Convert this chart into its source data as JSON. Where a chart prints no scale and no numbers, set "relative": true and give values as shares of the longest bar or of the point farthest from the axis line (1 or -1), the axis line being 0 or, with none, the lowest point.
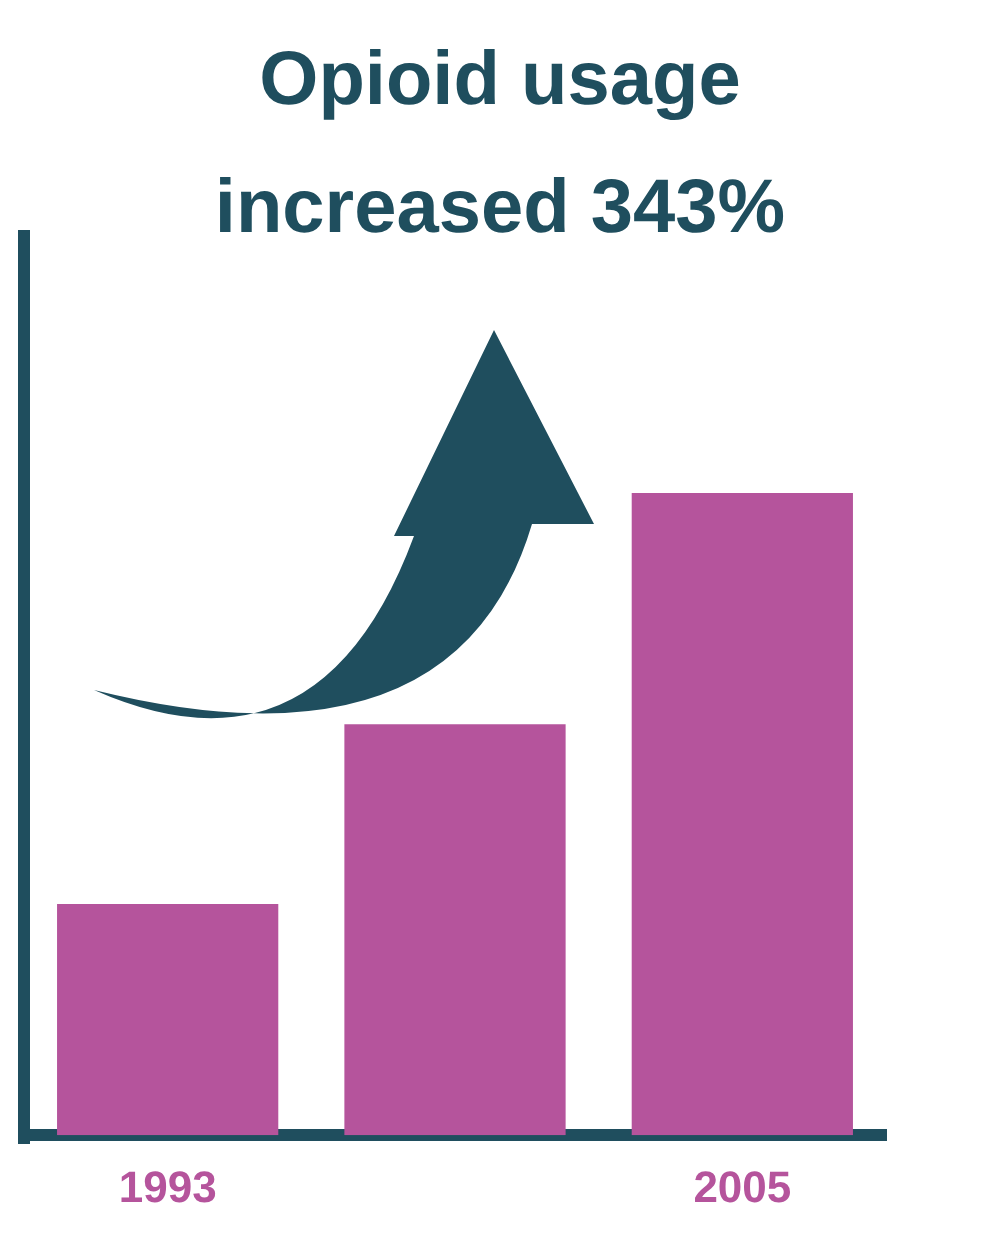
{
  "chart_data": {
    "type": "bar",
    "title": "Opioid usage increased 343%",
    "categories": [
      "1993",
      null,
      "2005"
    ],
    "values": [
      0.36,
      0.64,
      1
    ],
    "color": "#b5549c",
    "relative": true,
    "grid": false,
    "legend": false
  }
}
